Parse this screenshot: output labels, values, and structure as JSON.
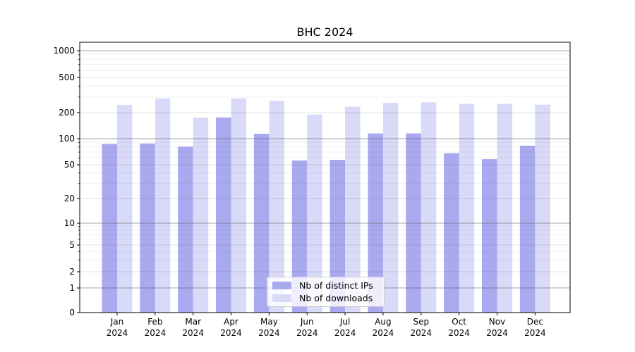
{
  "chart_data": {
    "type": "bar",
    "title": "BHC 2024",
    "categories": [
      "Jan 2024",
      "Feb 2024",
      "Mar 2024",
      "Apr 2024",
      "May 2024",
      "Jun 2024",
      "Jul 2024",
      "Aug 2024",
      "Sep 2024",
      "Oct 2024",
      "Nov 2024",
      "Dec 2024"
    ],
    "series": [
      {
        "name": "Nb of distinct IPs",
        "color": "#a9a9f0",
        "values": [
          87,
          88,
          81,
          176,
          114,
          56,
          57,
          115,
          115,
          68,
          58,
          83
        ]
      },
      {
        "name": "Nb of downloads",
        "color": "#d9d9f8",
        "values": [
          244,
          290,
          175,
          290,
          272,
          190,
          233,
          258,
          262,
          252,
          252,
          246
        ]
      }
    ],
    "xlabel": "",
    "ylabel": "",
    "yscale": "symlog",
    "y_ticks": [
      0,
      1,
      2,
      5,
      10,
      20,
      50,
      100,
      200,
      500,
      1000
    ],
    "y_tick_labels": [
      "0",
      "1",
      "2",
      "5",
      "10",
      "20",
      "50",
      "100",
      "200",
      "500",
      "1000"
    ],
    "ylim": [
      0,
      1200
    ],
    "grid": "on",
    "grid_major_color": "#9a9a9a",
    "grid_minor_color": "#e9e9e9",
    "legend_position": "lower center",
    "axis_color": "#000000",
    "background_color": "#ffffff"
  }
}
